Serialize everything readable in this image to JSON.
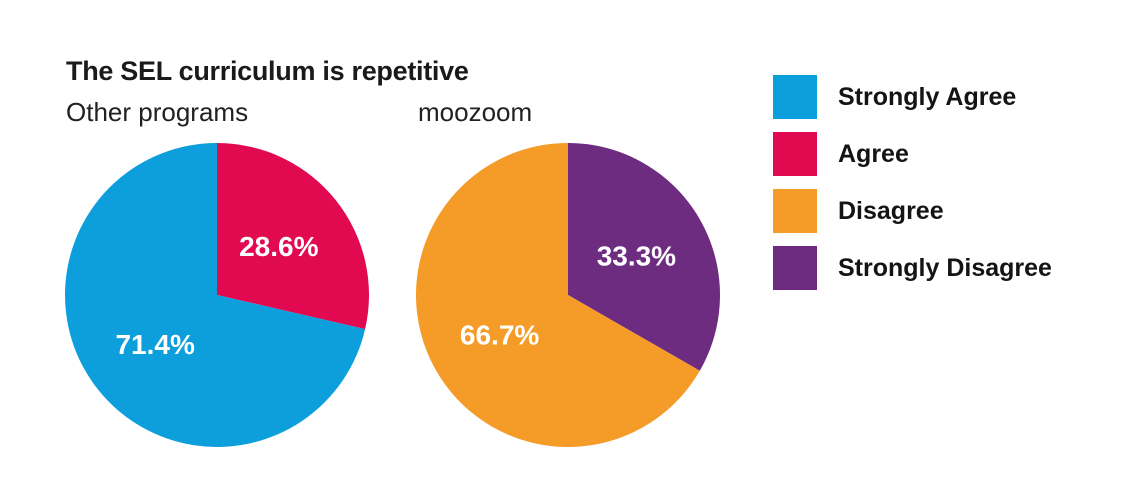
{
  "header": {
    "title": "The SEL curriculum is repetitive"
  },
  "legend": {
    "position": "right",
    "items": [
      {
        "label": "Strongly Agree",
        "color": "#0C9FDC"
      },
      {
        "label": "Agree",
        "color": "#E1094F"
      },
      {
        "label": "Disagree",
        "color": "#F59B27"
      },
      {
        "label": "Strongly Disagree",
        "color": "#6E2C80"
      }
    ]
  },
  "chart_data": [
    {
      "type": "pie",
      "title": "Other programs",
      "start_angle_deg": 0,
      "direction": "clockwise",
      "label_color": "#ffffff",
      "slices": [
        {
          "label": "Agree",
          "value": 28.6,
          "display": "28.6%",
          "color": "#E1094F"
        },
        {
          "label": "Strongly Agree",
          "value": 71.4,
          "display": "71.4%",
          "color": "#0C9FDC"
        }
      ]
    },
    {
      "type": "pie",
      "title": "moozoom",
      "start_angle_deg": 0,
      "direction": "clockwise",
      "label_color": "#ffffff",
      "slices": [
        {
          "label": "Strongly Disagree",
          "value": 33.3,
          "display": "33.3%",
          "color": "#6E2C80"
        },
        {
          "label": "Disagree",
          "value": 66.7,
          "display": "66.7%",
          "color": "#F59B27"
        }
      ]
    }
  ]
}
